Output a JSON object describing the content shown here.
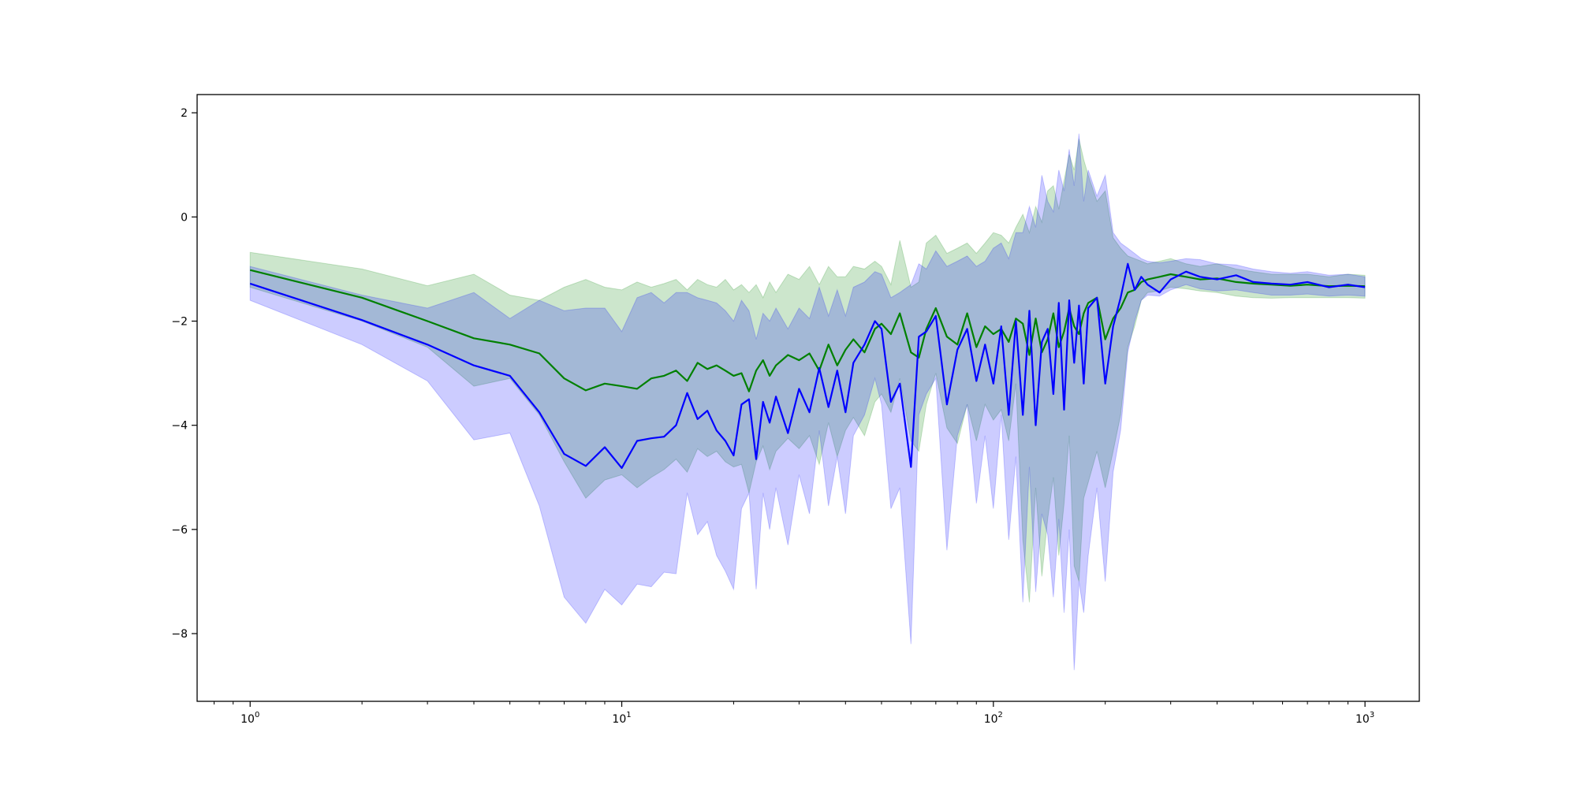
{
  "chart_data": {
    "type": "line",
    "title": "",
    "xlabel": "",
    "ylabel": "",
    "xscale": "log",
    "xlim": [
      0.72,
      1400
    ],
    "ylim": [
      -9.3,
      2.35
    ],
    "grid": false,
    "legend": "none",
    "x_ticks": [
      {
        "value": 1,
        "base": "10",
        "exp": "0"
      },
      {
        "value": 10,
        "base": "10",
        "exp": "1"
      },
      {
        "value": 100,
        "base": "10",
        "exp": "2"
      },
      {
        "value": 1000,
        "base": "10",
        "exp": "3"
      }
    ],
    "y_ticks": [
      {
        "value": 2,
        "label": "2"
      },
      {
        "value": 0,
        "label": "0"
      },
      {
        "value": -2,
        "label": "−2"
      },
      {
        "value": -4,
        "label": "−4"
      },
      {
        "value": -6,
        "label": "−6"
      },
      {
        "value": -8,
        "label": "−8"
      }
    ],
    "series": [
      {
        "color": "#008000",
        "band_color": "#008000",
        "band_opacity": 0.2,
        "x": [
          1,
          2,
          3,
          4,
          5,
          6,
          7,
          8,
          9,
          10,
          11,
          12,
          13,
          14,
          15,
          16,
          17,
          18,
          19,
          20,
          21,
          22,
          23,
          24,
          25,
          26,
          28,
          30,
          32,
          34,
          36,
          38,
          40,
          42,
          45,
          48,
          50,
          53,
          56,
          60,
          63,
          66,
          70,
          75,
          80,
          85,
          90,
          95,
          100,
          105,
          110,
          115,
          120,
          125,
          130,
          135,
          140,
          145,
          150,
          155,
          160,
          165,
          170,
          175,
          180,
          190,
          200,
          210,
          220,
          230,
          240,
          250,
          260,
          280,
          300,
          330,
          360,
          400,
          450,
          500,
          560,
          630,
          700,
          800,
          900,
          1000
        ],
        "y": [
          -1.02,
          -1.55,
          -2.0,
          -2.33,
          -2.45,
          -2.62,
          -3.1,
          -3.33,
          -3.2,
          -3.25,
          -3.3,
          -3.1,
          -3.05,
          -2.95,
          -3.15,
          -2.8,
          -2.92,
          -2.85,
          -2.95,
          -3.05,
          -3.0,
          -3.35,
          -2.95,
          -2.75,
          -3.05,
          -2.85,
          -2.65,
          -2.75,
          -2.62,
          -2.95,
          -2.45,
          -2.85,
          -2.55,
          -2.35,
          -2.6,
          -2.15,
          -2.05,
          -2.25,
          -1.85,
          -2.6,
          -2.7,
          -2.15,
          -1.75,
          -2.3,
          -2.45,
          -1.85,
          -2.5,
          -2.1,
          -2.25,
          -2.15,
          -2.4,
          -1.95,
          -2.05,
          -2.65,
          -1.95,
          -2.6,
          -2.35,
          -1.85,
          -2.5,
          -2.2,
          -1.75,
          -2.1,
          -2.25,
          -1.85,
          -1.65,
          -1.55,
          -2.35,
          -1.95,
          -1.75,
          -1.45,
          -1.4,
          -1.25,
          -1.2,
          -1.15,
          -1.1,
          -1.15,
          -1.2,
          -1.18,
          -1.25,
          -1.28,
          -1.3,
          -1.32,
          -1.3,
          -1.33,
          -1.32,
          -1.33
        ],
        "lower": [
          -1.35,
          -2.0,
          -2.5,
          -3.25,
          -3.1,
          -3.8,
          -4.7,
          -5.4,
          -5.05,
          -4.95,
          -5.2,
          -5.0,
          -4.85,
          -4.65,
          -4.9,
          -4.45,
          -4.6,
          -4.5,
          -4.7,
          -4.8,
          -4.75,
          -5.3,
          -4.7,
          -4.4,
          -4.85,
          -4.5,
          -4.25,
          -4.45,
          -4.2,
          -4.75,
          -3.95,
          -4.6,
          -4.1,
          -3.85,
          -4.2,
          -3.55,
          -3.4,
          -3.75,
          -3.1,
          -4.3,
          -4.5,
          -3.6,
          -3.0,
          -4.05,
          -4.35,
          -3.6,
          -4.3,
          -3.6,
          -3.9,
          -3.7,
          -4.3,
          -3.2,
          -6.2,
          -7.4,
          -5.2,
          -6.9,
          -5.8,
          -5.0,
          -6.5,
          -5.5,
          -4.2,
          -6.7,
          -7.0,
          -5.4,
          -5.1,
          -4.5,
          -5.2,
          -4.5,
          -3.8,
          -2.5,
          -2.1,
          -1.6,
          -1.45,
          -1.42,
          -1.35,
          -1.38,
          -1.42,
          -1.45,
          -1.52,
          -1.55,
          -1.56,
          -1.55,
          -1.55,
          -1.55,
          -1.55,
          -1.56
        ],
        "upper": [
          -0.68,
          -1.0,
          -1.32,
          -1.1,
          -1.5,
          -1.6,
          -1.35,
          -1.2,
          -1.35,
          -1.4,
          -1.25,
          -1.35,
          -1.28,
          -1.2,
          -1.4,
          -1.2,
          -1.3,
          -1.35,
          -1.2,
          -1.4,
          -1.3,
          -1.45,
          -1.3,
          -1.55,
          -1.25,
          -1.45,
          -1.1,
          -1.2,
          -0.95,
          -1.3,
          -0.95,
          -1.15,
          -1.15,
          -0.95,
          -1.0,
          -0.85,
          -0.95,
          -1.3,
          -0.45,
          -1.35,
          -1.25,
          -0.5,
          -0.35,
          -0.7,
          -0.6,
          -0.5,
          -0.7,
          -0.5,
          -0.3,
          -0.35,
          -0.5,
          -0.2,
          0.05,
          -0.3,
          0.2,
          -0.1,
          0.5,
          0.6,
          0.15,
          0.7,
          1.2,
          0.9,
          1.5,
          1.1,
          0.8,
          0.3,
          0.5,
          -0.4,
          -0.6,
          -0.75,
          -0.8,
          -0.85,
          -0.9,
          -0.85,
          -0.8,
          -0.9,
          -0.95,
          -0.9,
          -1.0,
          -1.05,
          -1.1,
          -1.1,
          -1.1,
          -1.15,
          -1.1,
          -1.12
        ]
      },
      {
        "color": "#0000ff",
        "band_color": "#0000ff",
        "band_opacity": 0.2,
        "x": [
          1,
          2,
          3,
          4,
          5,
          6,
          7,
          8,
          9,
          10,
          11,
          12,
          13,
          14,
          15,
          16,
          17,
          18,
          19,
          20,
          21,
          22,
          23,
          24,
          25,
          26,
          28,
          30,
          32,
          34,
          36,
          38,
          40,
          42,
          45,
          48,
          50,
          53,
          56,
          60,
          63,
          66,
          70,
          75,
          80,
          85,
          90,
          95,
          100,
          105,
          110,
          115,
          120,
          125,
          130,
          135,
          140,
          145,
          150,
          155,
          160,
          165,
          170,
          175,
          180,
          190,
          200,
          210,
          220,
          230,
          240,
          250,
          260,
          280,
          300,
          330,
          360,
          400,
          450,
          500,
          560,
          630,
          700,
          800,
          900,
          1000
        ],
        "y": [
          -1.28,
          -1.98,
          -2.45,
          -2.85,
          -3.05,
          -3.75,
          -4.55,
          -4.78,
          -4.42,
          -4.82,
          -4.3,
          -4.25,
          -4.22,
          -4.0,
          -3.38,
          -3.88,
          -3.72,
          -4.1,
          -4.3,
          -4.58,
          -3.6,
          -3.5,
          -4.65,
          -3.55,
          -3.95,
          -3.45,
          -4.15,
          -3.3,
          -3.75,
          -2.9,
          -3.65,
          -2.95,
          -3.75,
          -2.8,
          -2.45,
          -2.0,
          -2.15,
          -3.55,
          -3.2,
          -4.8,
          -2.3,
          -2.2,
          -1.9,
          -3.6,
          -2.55,
          -2.15,
          -3.15,
          -2.45,
          -3.2,
          -2.1,
          -3.8,
          -2.0,
          -3.8,
          -1.8,
          -4.0,
          -2.4,
          -2.15,
          -3.4,
          -1.65,
          -3.7,
          -1.6,
          -2.8,
          -1.7,
          -3.2,
          -1.75,
          -1.55,
          -3.2,
          -2.1,
          -1.55,
          -0.9,
          -1.4,
          -1.15,
          -1.3,
          -1.45,
          -1.2,
          -1.05,
          -1.15,
          -1.2,
          -1.12,
          -1.25,
          -1.28,
          -1.3,
          -1.25,
          -1.35,
          -1.3,
          -1.35
        ],
        "lower": [
          -1.6,
          -2.45,
          -3.15,
          -4.28,
          -4.15,
          -5.55,
          -7.3,
          -7.8,
          -7.15,
          -7.45,
          -7.05,
          -7.1,
          -6.82,
          -6.85,
          -5.3,
          -6.1,
          -5.85,
          -6.5,
          -6.8,
          -7.15,
          -5.6,
          -5.3,
          -7.15,
          -5.3,
          -6.0,
          -5.2,
          -6.3,
          -4.95,
          -5.7,
          -4.1,
          -5.55,
          -4.6,
          -5.7,
          -4.2,
          -3.8,
          -3.1,
          -3.6,
          -5.6,
          -5.2,
          -8.2,
          -3.8,
          -3.4,
          -3.1,
          -6.4,
          -4.2,
          -3.6,
          -5.5,
          -4.2,
          -5.6,
          -3.8,
          -6.2,
          -4.6,
          -7.4,
          -4.8,
          -7.2,
          -5.7,
          -6.1,
          -7.3,
          -5.8,
          -7.6,
          -6.0,
          -8.7,
          -7.0,
          -7.6,
          -6.5,
          -5.2,
          -7.0,
          -4.9,
          -4.1,
          -2.6,
          -2.0,
          -1.6,
          -1.5,
          -1.52,
          -1.4,
          -1.3,
          -1.38,
          -1.42,
          -1.4,
          -1.45,
          -1.5,
          -1.5,
          -1.48,
          -1.52,
          -1.5,
          -1.52
        ],
        "upper": [
          -0.95,
          -1.5,
          -1.75,
          -1.45,
          -1.95,
          -1.6,
          -1.8,
          -1.75,
          -1.75,
          -2.2,
          -1.55,
          -1.45,
          -1.65,
          -1.45,
          -1.45,
          -1.55,
          -1.6,
          -1.65,
          -1.8,
          -2.0,
          -1.6,
          -1.8,
          -2.35,
          -1.85,
          -2.0,
          -1.75,
          -2.15,
          -1.75,
          -1.95,
          -1.35,
          -1.9,
          -1.4,
          -1.9,
          -1.35,
          -1.25,
          -1.05,
          -1.1,
          -1.55,
          -1.45,
          -1.3,
          -0.9,
          -1.0,
          -0.65,
          -0.95,
          -0.85,
          -0.75,
          -0.95,
          -0.85,
          -0.6,
          -0.5,
          -0.8,
          -0.3,
          -0.3,
          0.2,
          -0.2,
          0.8,
          0.3,
          0.1,
          0.9,
          0.5,
          1.3,
          0.6,
          1.6,
          0.3,
          0.9,
          0.4,
          0.8,
          -0.3,
          -0.5,
          -0.6,
          -0.7,
          -0.8,
          -0.85,
          -0.88,
          -0.85,
          -0.8,
          -0.82,
          -0.9,
          -0.92,
          -1.0,
          -1.05,
          -1.08,
          -1.05,
          -1.12,
          -1.1,
          -1.15
        ]
      }
    ]
  }
}
